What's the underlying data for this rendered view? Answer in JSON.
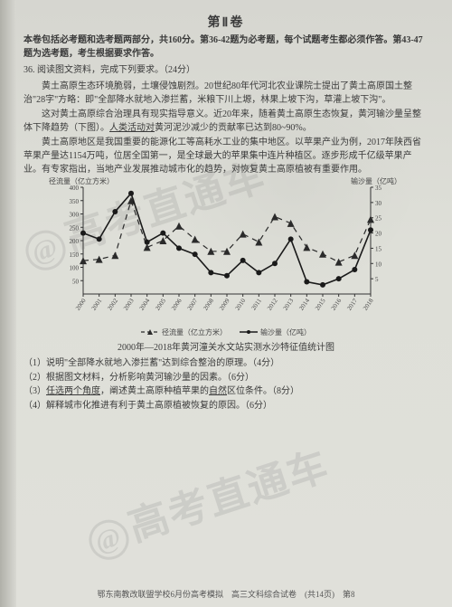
{
  "title": "第Ⅱ卷",
  "instructions": "本卷包括必考题和选考题两部分，共160分。第36-42题为必考题，每个试题考生都必须作答。第43-47题为选考题，考生根据要求作答。",
  "question_head": "36. 阅读图文资料，完成下列要求。（24分）",
  "paragraphs": [
    "黄土高原生态环境脆弱，土壤侵蚀剧烈。20世纪80年代河北农业课院士提出了黄土高原国土整治\"28字\"方略：即\"全部降水就地入渗拦蓄，米粮下川上塬，林果上坡下沟，草灌上坡下沟\"。",
    "这对黄土高原综合治理具有现实指导意义。近20年来，随着黄土高原生态恢复，黄河输沙量呈整体下降趋势（下图）。人类活动对黄河泥沙减少的贡献率已达到80~90%。",
    "黄土高原地区是我国重要的能源化工等高耗水工业的集中地区。以苹果产业为例，2017年陕西省苹果产量达1154万吨，位居全国第一，是全球最大的苹果集中连片种植区。逐步形成千亿级苹果产业。有专家指出，当地产业发展推动城市化的趋势，对恢复黄土高原植被有重要作用。"
  ],
  "chart": {
    "type": "line",
    "left_y_title": "径流量（亿立方米）",
    "right_y_title": "输沙量（亿吨）",
    "x_years": [
      "2000",
      "2001",
      "2002",
      "2003",
      "2004",
      "2005",
      "2006",
      "2007",
      "2008",
      "2009",
      "2010",
      "2011",
      "2012",
      "2013",
      "2014",
      "2015",
      "2016",
      "2017",
      "2018"
    ],
    "left_y": {
      "min": 0,
      "max": 400,
      "step": 50,
      "labels": [
        "50",
        "100",
        "150",
        "200",
        "250",
        "300",
        "350",
        "400"
      ]
    },
    "right_y": {
      "min": 0,
      "max": 35,
      "step": 5,
      "labels": [
        "5",
        "10",
        "15",
        "20",
        "25",
        "30",
        "35"
      ]
    },
    "background_color": "#d8d8d2",
    "axis_color": "#333333",
    "grid": false,
    "series": [
      {
        "name": "径流量（亿立方米）",
        "axis": "left",
        "color": "#2a2a2a",
        "dash": "6,5",
        "width": 1.2,
        "markers": "triangle",
        "marker_size": 4,
        "values": [
          125,
          130,
          145,
          350,
          175,
          200,
          255,
          205,
          160,
          160,
          225,
          195,
          290,
          265,
          175,
          150,
          120,
          145,
          280
        ]
      },
      {
        "name": "输沙量（亿吨）",
        "axis": "right",
        "color": "#1a1a1a",
        "dash": "none",
        "width": 1.6,
        "markers": "dot",
        "marker_size": 3,
        "values": [
          20,
          18,
          27,
          33,
          17,
          20,
          15,
          13,
          7,
          6,
          11,
          7,
          10,
          18,
          4,
          3,
          5,
          8,
          21
        ]
      }
    ],
    "legend_items": [
      "径流量（亿立方米）",
      "输沙量（亿吨）"
    ],
    "legend_position": "bottom"
  },
  "chart_caption": "2000年—2018年黄河潼关水文站实测水沙特征值统计图",
  "sub_questions": [
    "（1）说明\"全部降水就地入渗拦蓄\"达到综合整治的原理。（4分）",
    "（2）根据图文材料，分析影响黄河输沙量的因素。（6分）",
    "（3）任选两个角度，阐述黄土高原种植苹果的自然区位条件。（8分）",
    "（4）解释城市化推进有利于黄土高原植被恢复的原因。（6分）"
  ],
  "watermark_text": "高考直通车",
  "footer": "鄂东南教改联盟学校6月份高考模拟　高三文科综合试卷　(共14页)　第8",
  "colors": {
    "page_bg": "#d8d8d2",
    "text": "#3a3a3a",
    "watermark": "rgba(120,120,120,0.18)"
  }
}
